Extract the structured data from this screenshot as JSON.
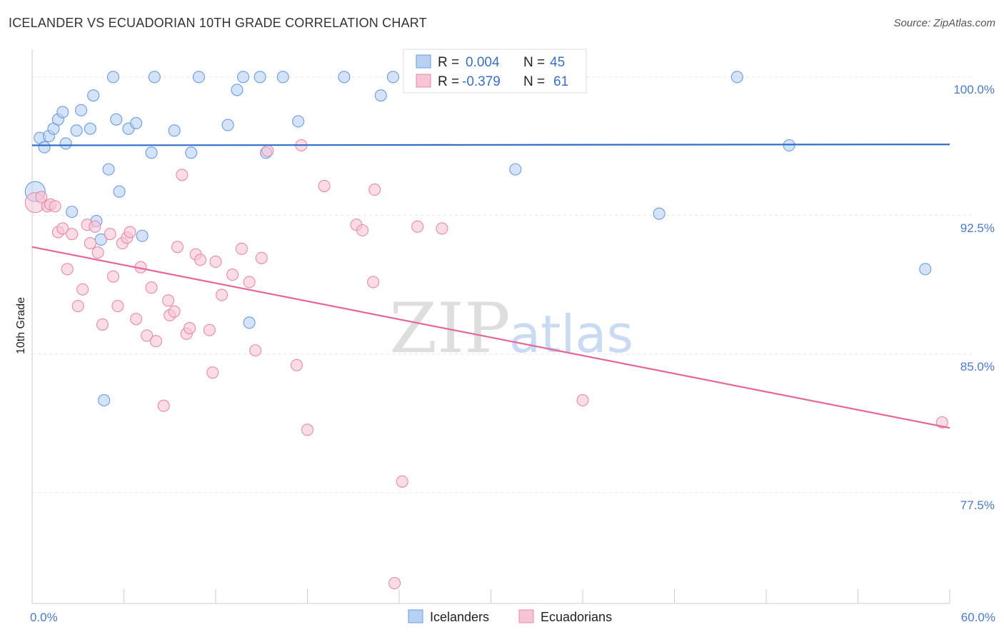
{
  "title": "ICELANDER VS ECUADORIAN 10TH GRADE CORRELATION CHART",
  "source": "Source: ZipAtlas.com",
  "watermark": {
    "zip": "ZIP",
    "atlas": "atlas"
  },
  "chart_data": {
    "type": "scatter",
    "ylabel": "10th Grade",
    "xlim": [
      0,
      60
    ],
    "ylim": [
      71.5,
      101.5
    ],
    "x_ticks": [
      0,
      6,
      12,
      18,
      24,
      30,
      36,
      42,
      48,
      54,
      60
    ],
    "x_tick_labels": {
      "0": "0.0%",
      "60": "60.0%"
    },
    "y_ticks": [
      77.5,
      85.0,
      92.5,
      100.0
    ],
    "y_tick_labels": [
      "77.5%",
      "85.0%",
      "92.5%",
      "100.0%"
    ],
    "grid": true,
    "legend_position": "top-center",
    "series": [
      {
        "name": "Icelanders",
        "color": "#6b9be0",
        "fill": "#b8d0f2",
        "R": "0.004",
        "N": "45",
        "trend": [
          [
            0,
            96.3
          ],
          [
            60,
            96.35
          ]
        ],
        "points": [
          [
            0.2,
            93.8
          ],
          [
            0.5,
            96.7
          ],
          [
            0.8,
            96.2
          ],
          [
            1.1,
            96.8
          ],
          [
            1.4,
            97.2
          ],
          [
            1.7,
            97.7
          ],
          [
            2.0,
            98.1
          ],
          [
            2.2,
            96.4
          ],
          [
            2.6,
            92.7
          ],
          [
            2.9,
            97.1
          ],
          [
            3.2,
            98.2
          ],
          [
            3.8,
            97.2
          ],
          [
            4.0,
            99.0
          ],
          [
            4.2,
            92.2
          ],
          [
            4.5,
            91.2
          ],
          [
            4.7,
            82.5
          ],
          [
            5.0,
            95.0
          ],
          [
            5.3,
            100.0
          ],
          [
            5.5,
            97.7
          ],
          [
            5.7,
            93.8
          ],
          [
            6.3,
            97.2
          ],
          [
            6.8,
            97.5
          ],
          [
            7.2,
            91.4
          ],
          [
            7.8,
            95.9
          ],
          [
            8.0,
            100.0
          ],
          [
            9.3,
            97.1
          ],
          [
            10.4,
            95.9
          ],
          [
            10.9,
            100.0
          ],
          [
            12.8,
            97.4
          ],
          [
            13.4,
            99.3
          ],
          [
            13.8,
            100.0
          ],
          [
            14.2,
            86.7
          ],
          [
            14.9,
            100.0
          ],
          [
            15.3,
            95.9
          ],
          [
            16.4,
            100.0
          ],
          [
            17.4,
            97.6
          ],
          [
            20.4,
            100.0
          ],
          [
            22.8,
            99.0
          ],
          [
            23.6,
            100.0
          ],
          [
            27.1,
            100.0
          ],
          [
            31.6,
            95.0
          ],
          [
            41.0,
            92.6
          ],
          [
            46.1,
            100.0
          ],
          [
            49.5,
            96.3
          ],
          [
            58.4,
            89.6
          ]
        ]
      },
      {
        "name": "Ecuadorians",
        "color": "#e889a8",
        "fill": "#f6c4d5",
        "R": "-0.379",
        "N": "61",
        "trend": [
          [
            0,
            90.8
          ],
          [
            60,
            81.0
          ]
        ],
        "points": [
          [
            0.2,
            93.2
          ],
          [
            0.6,
            93.5
          ],
          [
            1.0,
            93.0
          ],
          [
            1.2,
            93.1
          ],
          [
            1.5,
            93.0
          ],
          [
            1.7,
            91.6
          ],
          [
            2.0,
            91.8
          ],
          [
            2.3,
            89.6
          ],
          [
            2.6,
            91.5
          ],
          [
            3.0,
            87.6
          ],
          [
            3.3,
            88.5
          ],
          [
            3.6,
            92.0
          ],
          [
            3.8,
            91.0
          ],
          [
            4.1,
            91.9
          ],
          [
            4.3,
            90.5
          ],
          [
            4.6,
            86.6
          ],
          [
            5.1,
            91.5
          ],
          [
            5.3,
            89.2
          ],
          [
            5.6,
            87.6
          ],
          [
            5.9,
            91.0
          ],
          [
            6.2,
            91.3
          ],
          [
            6.4,
            91.6
          ],
          [
            6.8,
            86.9
          ],
          [
            7.1,
            89.7
          ],
          [
            7.5,
            86.0
          ],
          [
            7.8,
            88.6
          ],
          [
            8.1,
            85.7
          ],
          [
            8.6,
            82.2
          ],
          [
            8.9,
            87.9
          ],
          [
            9.0,
            87.1
          ],
          [
            9.3,
            87.3
          ],
          [
            9.5,
            90.8
          ],
          [
            9.8,
            94.7
          ],
          [
            10.1,
            86.1
          ],
          [
            10.3,
            86.4
          ],
          [
            10.7,
            90.4
          ],
          [
            11.0,
            90.1
          ],
          [
            11.6,
            86.3
          ],
          [
            11.8,
            84.0
          ],
          [
            12.0,
            90.0
          ],
          [
            12.4,
            88.2
          ],
          [
            13.1,
            89.3
          ],
          [
            13.7,
            90.7
          ],
          [
            14.2,
            88.9
          ],
          [
            14.6,
            85.2
          ],
          [
            15.0,
            90.2
          ],
          [
            15.4,
            96.0
          ],
          [
            17.3,
            84.4
          ],
          [
            17.6,
            96.3
          ],
          [
            18.0,
            80.9
          ],
          [
            19.1,
            94.1
          ],
          [
            21.2,
            92.0
          ],
          [
            21.6,
            91.7
          ],
          [
            22.3,
            88.9
          ],
          [
            22.4,
            93.9
          ],
          [
            23.7,
            72.6
          ],
          [
            24.2,
            78.1
          ],
          [
            25.2,
            91.9
          ],
          [
            26.8,
            91.8
          ],
          [
            36.0,
            82.5
          ],
          [
            59.5,
            81.3
          ]
        ]
      }
    ]
  }
}
